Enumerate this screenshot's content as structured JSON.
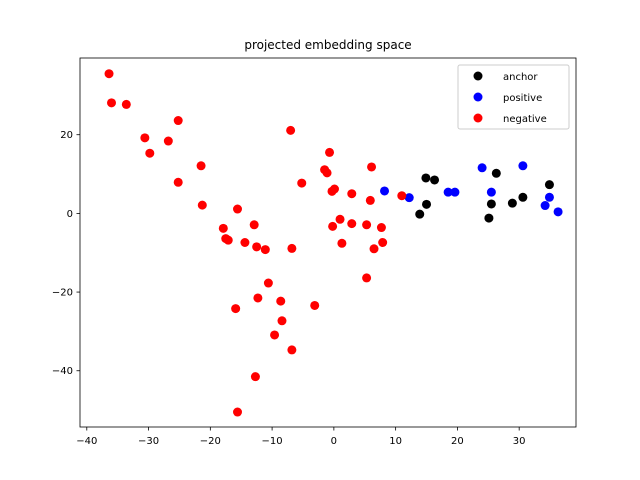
{
  "chart_data": {
    "type": "scatter",
    "title": "projected embedding space",
    "xlabel": "",
    "ylabel": "",
    "xlim": [
      -41.1,
      39.2
    ],
    "ylim": [
      -54.3,
      39.5
    ],
    "xticks": [
      -40,
      -30,
      -20,
      -10,
      0,
      10,
      20,
      30
    ],
    "yticks": [
      -40,
      -20,
      0,
      20
    ],
    "grid": false,
    "legend": "top-right",
    "series": [
      {
        "name": "anchor",
        "color": "#000000",
        "points": [
          [
            14.9,
            9.0
          ],
          [
            16.3,
            8.5
          ],
          [
            15.0,
            2.3
          ],
          [
            13.9,
            -0.2
          ],
          [
            26.3,
            10.2
          ],
          [
            25.5,
            2.4
          ],
          [
            25.1,
            -1.2
          ],
          [
            28.9,
            2.6
          ],
          [
            30.6,
            4.1
          ],
          [
            34.9,
            7.3
          ]
        ]
      },
      {
        "name": "positive",
        "color": "#0000ff",
        "points": [
          [
            8.2,
            5.7
          ],
          [
            12.2,
            4.0
          ],
          [
            18.5,
            5.4
          ],
          [
            19.6,
            5.4
          ],
          [
            24.0,
            11.6
          ],
          [
            25.5,
            5.4
          ],
          [
            30.6,
            12.1
          ],
          [
            34.2,
            2.0
          ],
          [
            34.9,
            4.1
          ],
          [
            36.3,
            0.4
          ]
        ]
      },
      {
        "name": "negative",
        "color": "#ff0000",
        "points": [
          [
            -36.4,
            35.5
          ],
          [
            -36.0,
            28.1
          ],
          [
            -33.6,
            27.7
          ],
          [
            -30.6,
            19.2
          ],
          [
            -29.8,
            15.3
          ],
          [
            -26.8,
            18.4
          ],
          [
            -25.2,
            23.6
          ],
          [
            -25.2,
            7.9
          ],
          [
            -21.5,
            12.1
          ],
          [
            -21.3,
            2.1
          ],
          [
            -17.9,
            -3.8
          ],
          [
            -17.5,
            -6.4
          ],
          [
            -17.1,
            -6.8
          ],
          [
            -15.6,
            1.1
          ],
          [
            -14.4,
            -7.4
          ],
          [
            -12.9,
            -2.9
          ],
          [
            -12.5,
            -8.5
          ],
          [
            -11.1,
            -9.2
          ],
          [
            -10.6,
            -17.7
          ],
          [
            -12.3,
            -21.5
          ],
          [
            -8.6,
            -22.3
          ],
          [
            -8.4,
            -27.3
          ],
          [
            -9.6,
            -30.9
          ],
          [
            -15.9,
            -24.2
          ],
          [
            -6.8,
            -34.7
          ],
          [
            -12.7,
            -41.5
          ],
          [
            -15.6,
            -50.5
          ],
          [
            -7.0,
            21.1
          ],
          [
            -6.8,
            -8.9
          ],
          [
            -5.2,
            7.7
          ],
          [
            -3.1,
            -23.4
          ],
          [
            -1.5,
            11.1
          ],
          [
            -1.1,
            10.3
          ],
          [
            -0.7,
            15.5
          ],
          [
            -0.3,
            5.6
          ],
          [
            0.1,
            6.2
          ],
          [
            -0.2,
            -3.3
          ],
          [
            1.0,
            -1.5
          ],
          [
            1.3,
            -7.6
          ],
          [
            2.9,
            5.0
          ],
          [
            2.9,
            -2.6
          ],
          [
            5.3,
            -16.4
          ],
          [
            5.3,
            -2.9
          ],
          [
            5.9,
            3.3
          ],
          [
            6.1,
            11.8
          ],
          [
            6.5,
            -9.0
          ],
          [
            7.7,
            -3.6
          ],
          [
            7.9,
            -7.4
          ],
          [
            11.0,
            4.5
          ]
        ]
      }
    ]
  }
}
